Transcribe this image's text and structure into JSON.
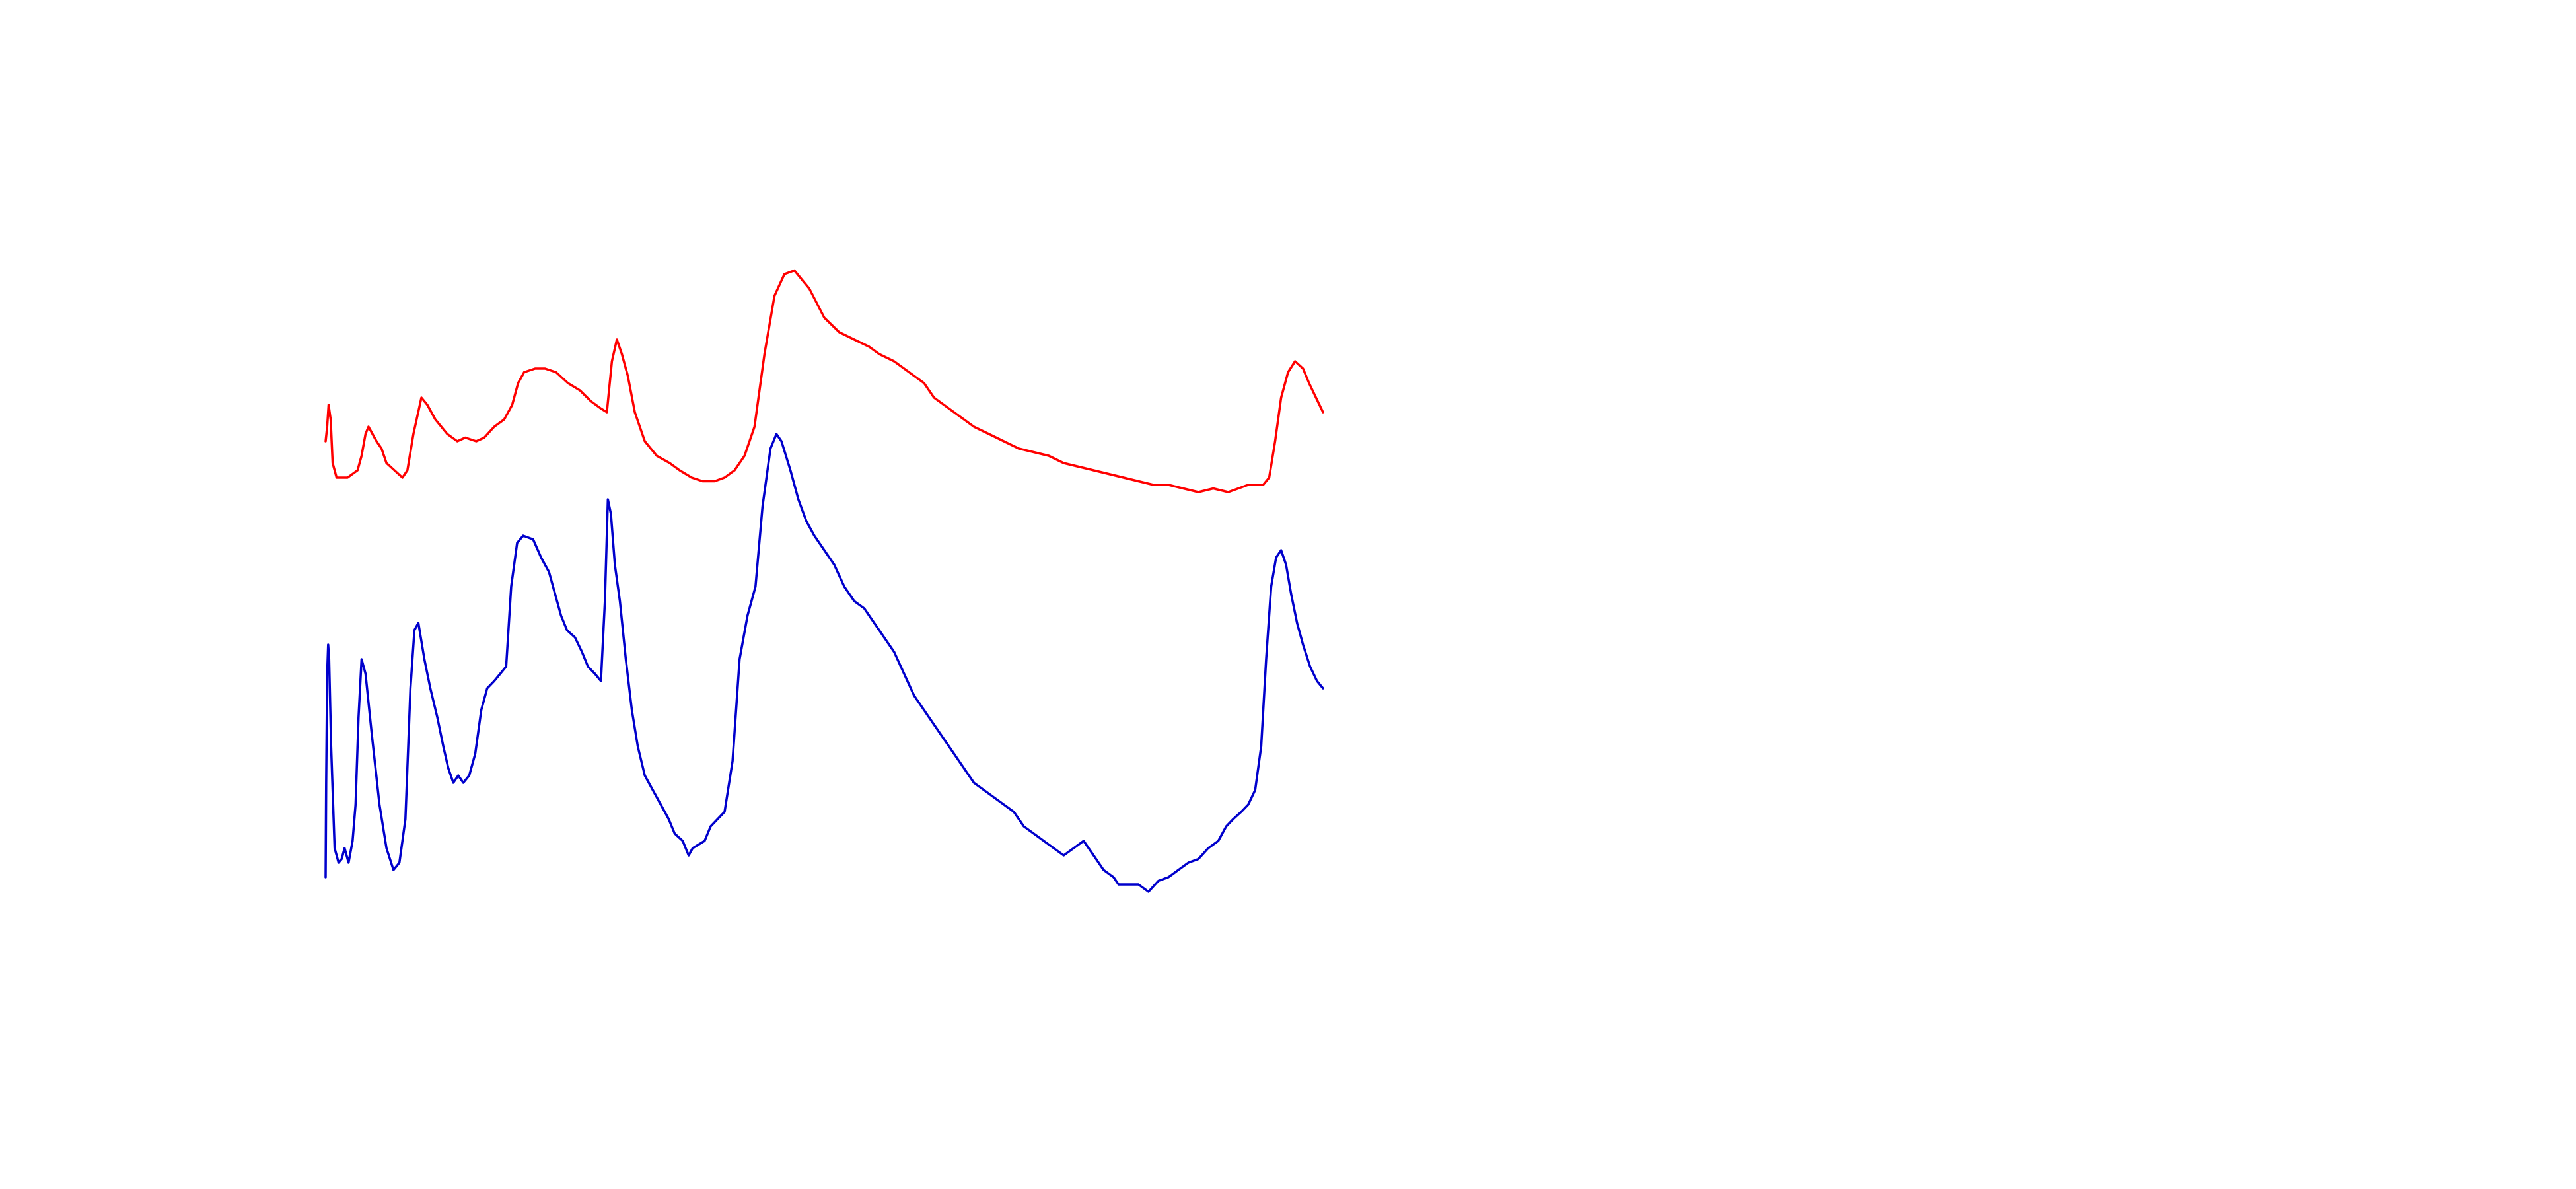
{
  "chart_data": {
    "type": "line",
    "title": "",
    "xlabel": "",
    "ylabel": "",
    "axes_visible": false,
    "grid": false,
    "legend": "none",
    "xlim": [
      0,
      100
    ],
    "ylim": [
      0,
      100
    ],
    "series": [
      {
        "color": "#ff0000",
        "points": [
          [
            0.0,
            72
          ],
          [
            0.15,
            74
          ],
          [
            0.3,
            77
          ],
          [
            0.5,
            75
          ],
          [
            0.7,
            69
          ],
          [
            1.1,
            67
          ],
          [
            2.2,
            67
          ],
          [
            3.2,
            68
          ],
          [
            3.6,
            70
          ],
          [
            4.0,
            73
          ],
          [
            4.3,
            74
          ],
          [
            4.7,
            73
          ],
          [
            5.1,
            72
          ],
          [
            5.6,
            71
          ],
          [
            6.1,
            69
          ],
          [
            6.9,
            68
          ],
          [
            7.7,
            67
          ],
          [
            8.2,
            68
          ],
          [
            8.8,
            73
          ],
          [
            9.6,
            78
          ],
          [
            10.2,
            77
          ],
          [
            11.0,
            75
          ],
          [
            12.2,
            73
          ],
          [
            13.2,
            72
          ],
          [
            14.0,
            72.5
          ],
          [
            15.1,
            72
          ],
          [
            15.9,
            72.5
          ],
          [
            16.9,
            74
          ],
          [
            17.9,
            75
          ],
          [
            18.7,
            77
          ],
          [
            19.3,
            80
          ],
          [
            19.9,
            81.5
          ],
          [
            21.0,
            82
          ],
          [
            22.0,
            82
          ],
          [
            23.1,
            81.5
          ],
          [
            24.3,
            80
          ],
          [
            25.5,
            79
          ],
          [
            26.6,
            77.5
          ],
          [
            27.6,
            76.5
          ],
          [
            28.2,
            76
          ],
          [
            28.7,
            83
          ],
          [
            29.2,
            86
          ],
          [
            29.7,
            84
          ],
          [
            30.3,
            81
          ],
          [
            31.0,
            76
          ],
          [
            32.0,
            72
          ],
          [
            33.2,
            70
          ],
          [
            34.5,
            69
          ],
          [
            35.5,
            68
          ],
          [
            36.7,
            67
          ],
          [
            37.8,
            66.5
          ],
          [
            39.0,
            66.5
          ],
          [
            40.0,
            67
          ],
          [
            41.0,
            68
          ],
          [
            42.0,
            70
          ],
          [
            43.0,
            74
          ],
          [
            44.0,
            84
          ],
          [
            45.0,
            92
          ],
          [
            46.0,
            95
          ],
          [
            47.0,
            95.5
          ],
          [
            48.5,
            93
          ],
          [
            50.0,
            89
          ],
          [
            51.5,
            87
          ],
          [
            53.0,
            86
          ],
          [
            54.5,
            85
          ],
          [
            55.5,
            84
          ],
          [
            57.0,
            83
          ],
          [
            58.0,
            82
          ],
          [
            59.0,
            81
          ],
          [
            60.0,
            80
          ],
          [
            61.0,
            78
          ],
          [
            62.0,
            77
          ],
          [
            63.0,
            76
          ],
          [
            64.0,
            75
          ],
          [
            65.0,
            74
          ],
          [
            66.5,
            73
          ],
          [
            68.0,
            72
          ],
          [
            69.5,
            71
          ],
          [
            71.0,
            70.5
          ],
          [
            72.5,
            70
          ],
          [
            74.0,
            69
          ],
          [
            75.5,
            68.5
          ],
          [
            77.0,
            68
          ],
          [
            78.5,
            67.5
          ],
          [
            80.0,
            67
          ],
          [
            81.5,
            66.5
          ],
          [
            83.0,
            66
          ],
          [
            84.5,
            66
          ],
          [
            86.0,
            65.5
          ],
          [
            87.5,
            65
          ],
          [
            89.0,
            65.5
          ],
          [
            90.5,
            65
          ],
          [
            91.5,
            65.5
          ],
          [
            92.5,
            66
          ],
          [
            93.3,
            66
          ],
          [
            94.0,
            66
          ],
          [
            94.6,
            67
          ],
          [
            95.2,
            72
          ],
          [
            95.8,
            78
          ],
          [
            96.5,
            81.5
          ],
          [
            97.2,
            83
          ],
          [
            98.0,
            82
          ],
          [
            98.6,
            80
          ],
          [
            99.3,
            78
          ],
          [
            100.0,
            76
          ]
        ]
      },
      {
        "color": "#0000cc",
        "points": [
          [
            0.0,
            12
          ],
          [
            0.05,
            25
          ],
          [
            0.15,
            40
          ],
          [
            0.25,
            44
          ],
          [
            0.35,
            42
          ],
          [
            0.55,
            30
          ],
          [
            0.9,
            16
          ],
          [
            1.3,
            14
          ],
          [
            1.6,
            14.5
          ],
          [
            1.9,
            16
          ],
          [
            2.3,
            14
          ],
          [
            2.7,
            17
          ],
          [
            3.0,
            22
          ],
          [
            3.3,
            34
          ],
          [
            3.6,
            42
          ],
          [
            4.0,
            40
          ],
          [
            4.6,
            32
          ],
          [
            5.0,
            27
          ],
          [
            5.4,
            22
          ],
          [
            6.1,
            16
          ],
          [
            6.8,
            13
          ],
          [
            7.4,
            14
          ],
          [
            8.0,
            20
          ],
          [
            8.5,
            38
          ],
          [
            8.9,
            46
          ],
          [
            9.3,
            47
          ],
          [
            9.9,
            42
          ],
          [
            10.5,
            38
          ],
          [
            11.2,
            34
          ],
          [
            11.8,
            30
          ],
          [
            12.3,
            27
          ],
          [
            12.8,
            25
          ],
          [
            13.3,
            26
          ],
          [
            13.8,
            25
          ],
          [
            14.4,
            26
          ],
          [
            15.0,
            29
          ],
          [
            15.6,
            35
          ],
          [
            16.2,
            38
          ],
          [
            16.9,
            39
          ],
          [
            17.5,
            40
          ],
          [
            18.1,
            41
          ],
          [
            18.6,
            52
          ],
          [
            19.2,
            58
          ],
          [
            19.8,
            59
          ],
          [
            20.8,
            58.5
          ],
          [
            21.6,
            56
          ],
          [
            22.4,
            54
          ],
          [
            23.0,
            51
          ],
          [
            23.6,
            48
          ],
          [
            24.2,
            46
          ],
          [
            25.0,
            45
          ],
          [
            25.7,
            43
          ],
          [
            26.3,
            41
          ],
          [
            27.0,
            40
          ],
          [
            27.6,
            39
          ],
          [
            28.0,
            50
          ],
          [
            28.3,
            64
          ],
          [
            28.6,
            62
          ],
          [
            29.0,
            55
          ],
          [
            29.5,
            50
          ],
          [
            30.1,
            42
          ],
          [
            30.7,
            35
          ],
          [
            31.3,
            30
          ],
          [
            32.0,
            26
          ],
          [
            32.8,
            24
          ],
          [
            33.6,
            22
          ],
          [
            34.4,
            20
          ],
          [
            35.0,
            18
          ],
          [
            35.8,
            17
          ],
          [
            36.4,
            15
          ],
          [
            36.8,
            16
          ],
          [
            37.4,
            16.5
          ],
          [
            38.0,
            17
          ],
          [
            38.6,
            19
          ],
          [
            39.3,
            20
          ],
          [
            40.0,
            21
          ],
          [
            40.8,
            28
          ],
          [
            41.5,
            42
          ],
          [
            42.3,
            48
          ],
          [
            43.1,
            52
          ],
          [
            43.8,
            63
          ],
          [
            44.6,
            71
          ],
          [
            45.2,
            73
          ],
          [
            45.7,
            72
          ],
          [
            46.6,
            68
          ],
          [
            47.4,
            64
          ],
          [
            48.2,
            61
          ],
          [
            49.0,
            59
          ],
          [
            50.0,
            57
          ],
          [
            51.0,
            55
          ],
          [
            52.0,
            52
          ],
          [
            53.0,
            50
          ],
          [
            54.0,
            49
          ],
          [
            55.0,
            47
          ],
          [
            56.0,
            45
          ],
          [
            57.0,
            43
          ],
          [
            58.0,
            40
          ],
          [
            59.0,
            37
          ],
          [
            60.0,
            35
          ],
          [
            61.0,
            33
          ],
          [
            62.0,
            31
          ],
          [
            63.0,
            29
          ],
          [
            64.0,
            27
          ],
          [
            65.0,
            25
          ],
          [
            66.0,
            24
          ],
          [
            67.0,
            23
          ],
          [
            68.0,
            22
          ],
          [
            69.0,
            21
          ],
          [
            70.0,
            19
          ],
          [
            71.0,
            18
          ],
          [
            72.0,
            17
          ],
          [
            73.0,
            16
          ],
          [
            74.0,
            15
          ],
          [
            75.0,
            16
          ],
          [
            76.0,
            17
          ],
          [
            77.0,
            15
          ],
          [
            78.0,
            13
          ],
          [
            79.0,
            12
          ],
          [
            79.5,
            11
          ],
          [
            80.5,
            11
          ],
          [
            81.5,
            11
          ],
          [
            82.5,
            10
          ],
          [
            83.5,
            11.5
          ],
          [
            84.5,
            12
          ],
          [
            85.5,
            13
          ],
          [
            86.5,
            14
          ],
          [
            87.5,
            14.5
          ],
          [
            88.5,
            16
          ],
          [
            89.5,
            17
          ],
          [
            90.3,
            19
          ],
          [
            91.0,
            20
          ],
          [
            91.8,
            21
          ],
          [
            92.5,
            22
          ],
          [
            93.2,
            24
          ],
          [
            93.8,
            30
          ],
          [
            94.3,
            42
          ],
          [
            94.8,
            52
          ],
          [
            95.3,
            56
          ],
          [
            95.8,
            57
          ],
          [
            96.3,
            55
          ],
          [
            96.8,
            51
          ],
          [
            97.4,
            47
          ],
          [
            98.0,
            44
          ],
          [
            98.7,
            41
          ],
          [
            99.4,
            39
          ],
          [
            100.0,
            38
          ]
        ]
      }
    ]
  }
}
